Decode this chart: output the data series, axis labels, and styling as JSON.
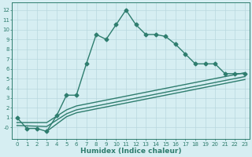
{
  "main_x": [
    0,
    1,
    2,
    3,
    4,
    5,
    6,
    7,
    8,
    9,
    10,
    11,
    12,
    13,
    14,
    15,
    16,
    17,
    18,
    19,
    20,
    21,
    22,
    23
  ],
  "main_y": [
    1.0,
    -0.1,
    -0.1,
    -0.4,
    1.2,
    3.3,
    3.3,
    6.5,
    9.5,
    9.0,
    10.5,
    12.0,
    10.5,
    9.5,
    9.5,
    9.3,
    8.5,
    7.5,
    6.5,
    6.5,
    6.5,
    5.5,
    5.5,
    5.5
  ],
  "line2_x": [
    0,
    3,
    5,
    6,
    23
  ],
  "line2_y": [
    0.5,
    0.5,
    1.8,
    2.2,
    5.6
  ],
  "line3_x": [
    0,
    3,
    5,
    6,
    23
  ],
  "line3_y": [
    0.2,
    0.1,
    1.4,
    1.8,
    5.2
  ],
  "line4_x": [
    3,
    5,
    6,
    23
  ],
  "line4_y": [
    -0.4,
    1.1,
    1.5,
    4.9
  ],
  "line_color": "#2e7d6e",
  "bg_color": "#d6eef2",
  "grid_color": "#b8d8de",
  "xlabel": "Humidex (Indice chaleur)",
  "xlim": [
    -0.5,
    23.5
  ],
  "ylim": [
    -1.2,
    12.8
  ],
  "xticks": [
    0,
    1,
    2,
    3,
    4,
    5,
    6,
    7,
    8,
    9,
    10,
    11,
    12,
    13,
    14,
    15,
    16,
    17,
    18,
    19,
    20,
    21,
    22,
    23
  ],
  "yticks": [
    0,
    1,
    2,
    3,
    4,
    5,
    6,
    7,
    8,
    9,
    10,
    11,
    12
  ],
  "marker": "D",
  "markersize": 2.5,
  "linewidth": 1.0,
  "tick_fontsize": 5.0,
  "label_fontsize": 6.5
}
